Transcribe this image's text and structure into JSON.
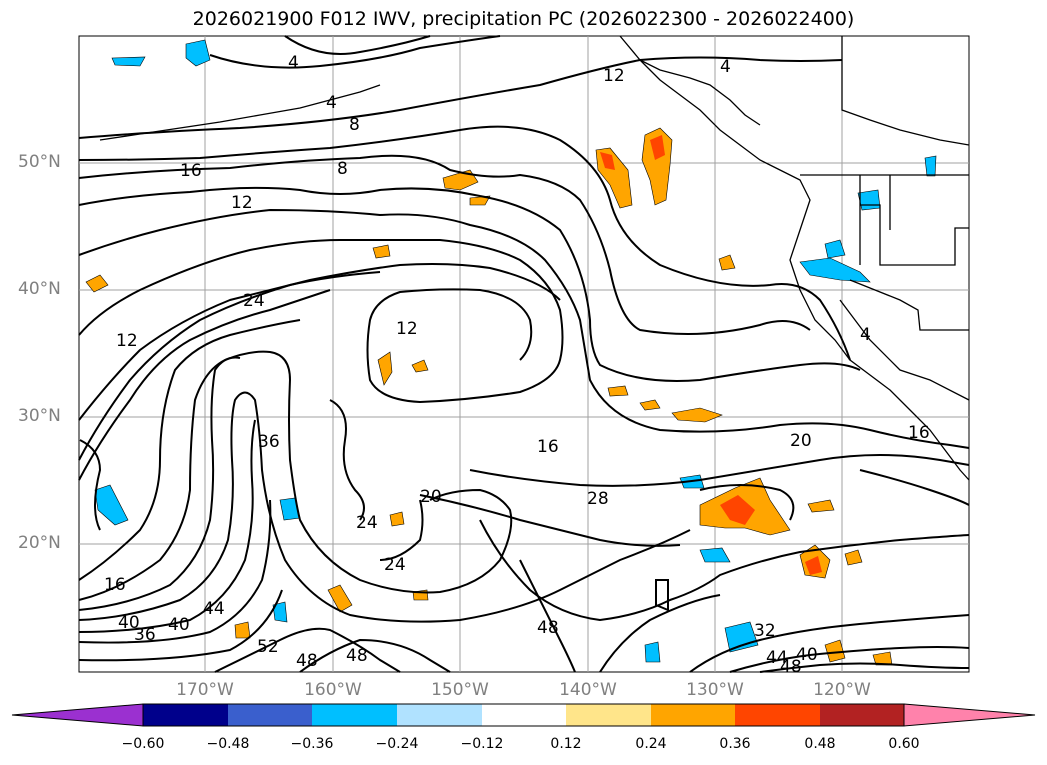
{
  "title": "2026021900 F012 IWV, precipitation PC (2026022300 - 2026022400)",
  "lat_labels": [
    "50°N",
    "40°N",
    "30°N",
    "20°N"
  ],
  "lon_labels": [
    "170°W",
    "160°W",
    "150°W",
    "140°W",
    "130°W",
    "120°W"
  ],
  "colorbar": {
    "ticks": [
      "−0.60",
      "−0.48",
      "−0.36",
      "−0.24",
      "−0.12",
      "0.12",
      "0.24",
      "0.36",
      "0.48",
      "0.60"
    ],
    "colors": [
      "#9b30d0",
      "#00008b",
      "#3a5fcd",
      "#00bfff",
      "#b0e2ff",
      "#ffffff",
      "#ffe58a",
      "#ffa500",
      "#ff4500",
      "#b22222",
      "#ff82ab"
    ]
  },
  "contour_labels": [
    "4",
    "4",
    "4",
    "12",
    "8",
    "8",
    "16",
    "12",
    "12",
    "12",
    "24",
    "36",
    "16",
    "20",
    "20",
    "28",
    "24",
    "24",
    "16",
    "40",
    "36",
    "40",
    "44",
    "52",
    "48",
    "48",
    "48",
    "32",
    "44",
    "48",
    "40",
    "16",
    "4"
  ]
}
